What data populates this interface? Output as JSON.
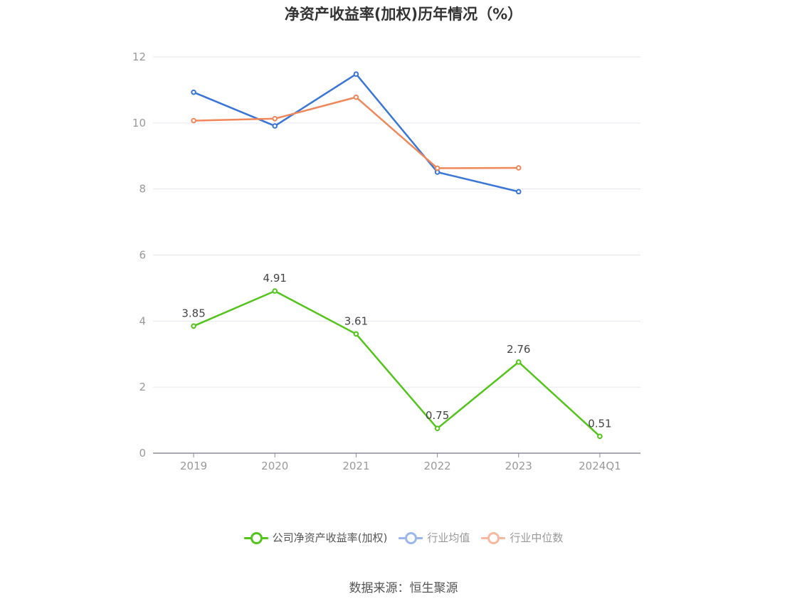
{
  "chart_data": {
    "type": "line",
    "title": "净资产收益率(加权)历年情况（%）",
    "categories": [
      "2019",
      "2020",
      "2021",
      "2022",
      "2023",
      "2024Q1"
    ],
    "ylim": [
      0,
      12
    ],
    "yticks": [
      0,
      2,
      4,
      6,
      8,
      10,
      12
    ],
    "grid": true,
    "legend_position": "bottom",
    "series": [
      {
        "name": "公司净资产收益率(加权)",
        "color": "#52c41a",
        "values": [
          3.85,
          4.91,
          3.61,
          0.75,
          2.76,
          0.51
        ],
        "show_labels": true
      },
      {
        "name": "行业均值",
        "color": "#3a75d8",
        "legend_color": "#9ab6ec",
        "values": [
          10.93,
          9.91,
          11.48,
          8.51,
          7.92,
          null
        ],
        "show_labels": false
      },
      {
        "name": "行业中位数",
        "color": "#f0875a",
        "legend_color": "#f6b8a0",
        "values": [
          10.07,
          10.13,
          10.78,
          8.63,
          8.64,
          null
        ],
        "show_labels": false
      }
    ]
  },
  "source_text": "数据来源：恒生聚源"
}
